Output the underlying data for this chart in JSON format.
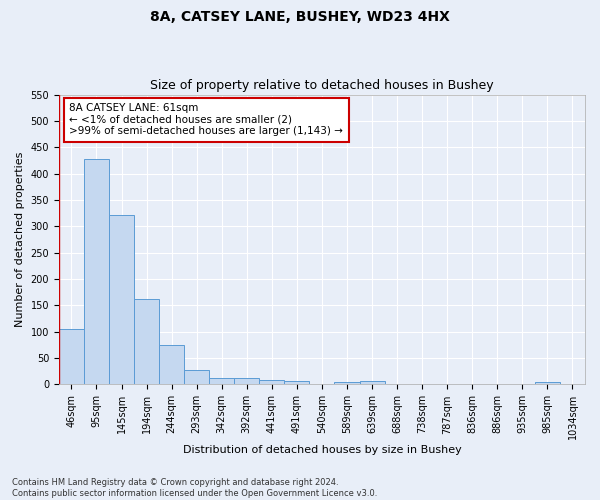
{
  "title1": "8A, CATSEY LANE, BUSHEY, WD23 4HX",
  "title2": "Size of property relative to detached houses in Bushey",
  "xlabel": "Distribution of detached houses by size in Bushey",
  "ylabel": "Number of detached properties",
  "footnote": "Contains HM Land Registry data © Crown copyright and database right 2024.\nContains public sector information licensed under the Open Government Licence v3.0.",
  "bar_labels": [
    "46sqm",
    "95sqm",
    "145sqm",
    "194sqm",
    "244sqm",
    "293sqm",
    "342sqm",
    "392sqm",
    "441sqm",
    "491sqm",
    "540sqm",
    "589sqm",
    "639sqm",
    "688sqm",
    "738sqm",
    "787sqm",
    "836sqm",
    "886sqm",
    "935sqm",
    "985sqm",
    "1034sqm"
  ],
  "bar_values": [
    105,
    428,
    322,
    163,
    75,
    27,
    13,
    13,
    9,
    6,
    0,
    5,
    6,
    0,
    0,
    0,
    0,
    0,
    0,
    5,
    0
  ],
  "bar_color": "#c5d8f0",
  "bar_edge_color": "#5b9bd5",
  "annotation_box_color": "#cc0000",
  "annotation_line1": "8A CATSEY LANE: 61sqm",
  "annotation_line2": "← <1% of detached houses are smaller (2)",
  "annotation_line3": ">99% of semi-detached houses are larger (1,143) →",
  "ylim": [
    0,
    550
  ],
  "yticks": [
    0,
    50,
    100,
    150,
    200,
    250,
    300,
    350,
    400,
    450,
    500,
    550
  ],
  "bg_color": "#e8eef8",
  "grid_color": "#ffffff",
  "title_fontsize": 10,
  "subtitle_fontsize": 9,
  "axis_label_fontsize": 8,
  "tick_fontsize": 7,
  "annotation_fontsize": 7.5,
  "footnote_fontsize": 6
}
